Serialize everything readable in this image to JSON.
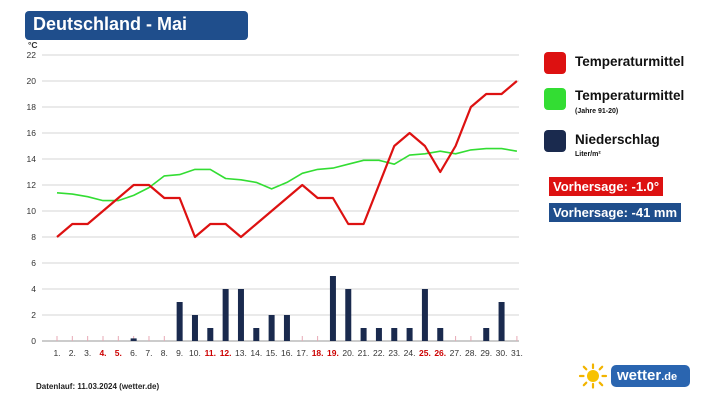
{
  "title": "Deutschland - Mai",
  "legend": {
    "temp": "Temperaturmittel",
    "temp_avg": "Temperaturmittel",
    "temp_avg_sub": "(Jahre 91-20)",
    "precip": "Niederschlag",
    "precip_unit": "Liter/m²"
  },
  "forecast": {
    "temp": "Vorhersage: -1.0°",
    "precip": "Vorhersage: -41 mm"
  },
  "footer": "Datenlauf: 11.03.2024 (wetter.de)",
  "brand": {
    "name": "wetter",
    "suffix": ".de"
  },
  "colors": {
    "temp": "#dd1111",
    "temp_avg": "#33dd33",
    "precip": "#1a2a4e",
    "title_bg": "#1f4e8c",
    "forecast_temp_bg": "#dd1111",
    "forecast_precip_bg": "#1f4e8c",
    "weekend_day": "#cc0000"
  },
  "icons": {
    "logo": "sun-icon"
  },
  "chart_data": {
    "type": "line",
    "yunit": "°C",
    "ylim": [
      0,
      22
    ],
    "yticks": [
      0,
      2,
      4,
      6,
      8,
      10,
      12,
      14,
      16,
      18,
      20,
      22
    ],
    "grid": true,
    "categories": [
      "1.",
      "2.",
      "3.",
      "4.",
      "5.",
      "6.",
      "7.",
      "8.",
      "9.",
      "10.",
      "11.",
      "12.",
      "13.",
      "14.",
      "15.",
      "16.",
      "17.",
      "18.",
      "19.",
      "20.",
      "21.",
      "22.",
      "23.",
      "24.",
      "25.",
      "26.",
      "27.",
      "28.",
      "29.",
      "30.",
      "31."
    ],
    "weekend_days": [
      "4.",
      "5.",
      "11.",
      "12.",
      "18.",
      "19.",
      "25.",
      "26."
    ],
    "series": [
      {
        "name": "Temperaturmittel",
        "kind": "line",
        "values": [
          8,
          9,
          9,
          10,
          11,
          12,
          12,
          11,
          11,
          8,
          9,
          9,
          8,
          9,
          10,
          11,
          12,
          11,
          11,
          9,
          9,
          12,
          15,
          16,
          15,
          13,
          15,
          18,
          19,
          19,
          20
        ]
      },
      {
        "name": "Temperaturmittel (Jahre 91-20)",
        "kind": "line",
        "values": [
          11.4,
          11.3,
          11.1,
          10.8,
          10.8,
          11.2,
          11.8,
          12.7,
          12.8,
          13.2,
          13.2,
          12.5,
          12.4,
          12.2,
          11.7,
          12.2,
          12.9,
          13.2,
          13.3,
          13.6,
          13.9,
          13.9,
          13.6,
          14.3,
          14.4,
          14.6,
          14.4,
          14.7,
          14.8,
          14.8,
          14.6
        ]
      },
      {
        "name": "Niederschlag",
        "kind": "bar",
        "values": [
          0,
          0,
          0,
          0,
          0,
          0.2,
          0,
          0,
          3,
          2,
          1,
          4,
          4,
          1,
          2,
          2,
          0,
          0,
          5,
          4,
          1,
          1,
          1,
          1,
          4,
          1,
          0,
          0,
          1,
          3,
          0
        ]
      }
    ]
  }
}
